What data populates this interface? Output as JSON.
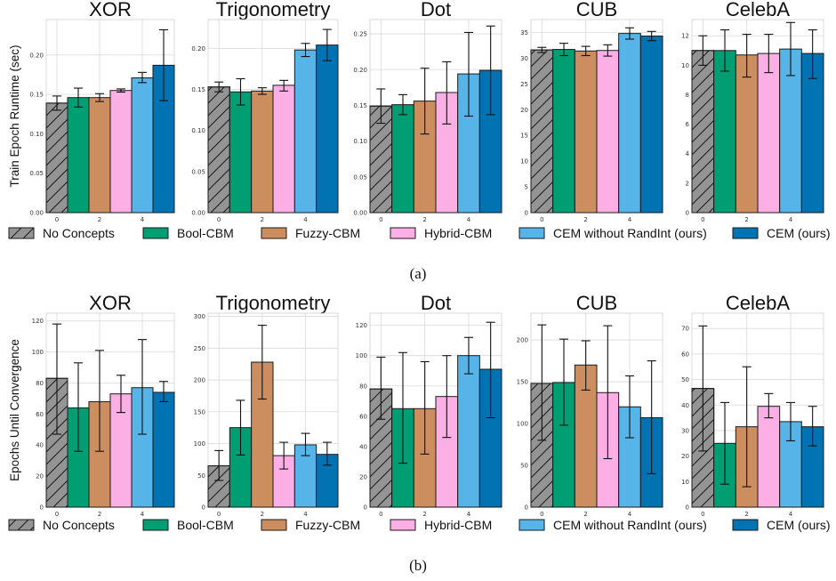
{
  "legend": [
    {
      "label": "No Concepts",
      "color": "#949494",
      "hatch": true
    },
    {
      "label": "Bool-CBM",
      "color": "#029e73",
      "hatch": false
    },
    {
      "label": "Fuzzy-CBM",
      "color": "#cc8d5f",
      "hatch": false
    },
    {
      "label": "Hybrid-CBM",
      "color": "#fbafe4",
      "hatch": false
    },
    {
      "label": "CEM without RandInt (ours)",
      "color": "#56b4e9",
      "hatch": false
    },
    {
      "label": "CEM (ours)",
      "color": "#0173b2",
      "hatch": false
    }
  ],
  "captions": [
    "(a)",
    "(b)"
  ],
  "chart_data": [
    {
      "type": "bar",
      "row": 0,
      "ylabel": "Train Epoch Runtime (sec)",
      "panels": [
        {
          "title": "XOR",
          "ylim": [
            0,
            0.245
          ],
          "yticks": [
            "0.00",
            "0.05",
            "0.10",
            "0.15",
            "0.20"
          ],
          "ytick_vals": [
            0,
            0.05,
            0.1,
            0.15,
            0.2
          ],
          "xticks": [
            "0",
            "2",
            "4"
          ],
          "values": [
            0.139,
            0.146,
            0.146,
            0.155,
            0.171,
            0.187
          ],
          "errors": [
            [
              0.13,
              0.148
            ],
            [
              0.134,
              0.158
            ],
            [
              0.141,
              0.151
            ],
            [
              0.153,
              0.157
            ],
            [
              0.165,
              0.178
            ],
            [
              0.142,
              0.232
            ]
          ]
        },
        {
          "title": "Trigonometry",
          "ylim": [
            0,
            0.235
          ],
          "yticks": [
            "0.00",
            "0.05",
            "0.10",
            "0.15",
            "0.20"
          ],
          "ytick_vals": [
            0,
            0.05,
            0.1,
            0.15,
            0.2
          ],
          "xticks": [
            "0",
            "2",
            "4"
          ],
          "values": [
            0.153,
            0.147,
            0.148,
            0.155,
            0.198,
            0.204
          ],
          "errors": [
            [
              0.147,
              0.159
            ],
            [
              0.131,
              0.163
            ],
            [
              0.144,
              0.152
            ],
            [
              0.148,
              0.161
            ],
            [
              0.19,
              0.206
            ],
            [
              0.185,
              0.223
            ]
          ]
        },
        {
          "title": "Dot",
          "ylim": [
            0,
            0.27
          ],
          "yticks": [
            "0.00",
            "0.05",
            "0.10",
            "0.15",
            "0.20",
            "0.25"
          ],
          "ytick_vals": [
            0,
            0.05,
            0.1,
            0.15,
            0.2,
            0.25
          ],
          "xticks": [
            "0",
            "2",
            "4"
          ],
          "values": [
            0.149,
            0.151,
            0.156,
            0.168,
            0.194,
            0.199
          ],
          "errors": [
            [
              0.125,
              0.173
            ],
            [
              0.137,
              0.165
            ],
            [
              0.11,
              0.202
            ],
            [
              0.124,
              0.211
            ],
            [
              0.135,
              0.252
            ],
            [
              0.137,
              0.261
            ]
          ]
        },
        {
          "title": "CUB",
          "ylim": [
            0,
            37.5
          ],
          "yticks": [
            "0",
            "5",
            "10",
            "15",
            "20",
            "25",
            "30",
            "35"
          ],
          "ytick_vals": [
            0,
            5,
            10,
            15,
            20,
            25,
            30,
            35
          ],
          "xticks": [
            "0",
            "2",
            "4"
          ],
          "values": [
            31.6,
            31.7,
            31.4,
            31.5,
            34.8,
            34.3
          ],
          "errors": [
            [
              31.1,
              32.1
            ],
            [
              30.5,
              32.9
            ],
            [
              30.5,
              32.3
            ],
            [
              30.4,
              32.6
            ],
            [
              33.7,
              35.9
            ],
            [
              33.4,
              35.2
            ]
          ]
        },
        {
          "title": "CelebA",
          "ylim": [
            0,
            13.1
          ],
          "yticks": [
            "0",
            "2",
            "4",
            "6",
            "8",
            "10",
            "12"
          ],
          "ytick_vals": [
            0,
            2,
            4,
            6,
            8,
            10,
            12
          ],
          "xticks": [
            "0",
            "2",
            "4"
          ],
          "values": [
            11.0,
            11.0,
            10.7,
            10.8,
            11.1,
            10.8
          ],
          "errors": [
            [
              10.0,
              12.0
            ],
            [
              9.6,
              12.4
            ],
            [
              9.2,
              12.1
            ],
            [
              9.5,
              12.1
            ],
            [
              9.3,
              12.9
            ],
            [
              9.1,
              12.4
            ]
          ]
        }
      ]
    },
    {
      "type": "bar",
      "row": 1,
      "ylabel": "Epochs Until Convergence",
      "panels": [
        {
          "title": "XOR",
          "ylim": [
            0,
            125
          ],
          "yticks": [
            "0",
            "20",
            "40",
            "60",
            "80",
            "100",
            "120"
          ],
          "ytick_vals": [
            0,
            20,
            40,
            60,
            80,
            100,
            120
          ],
          "xticks": [
            "0",
            "2",
            "4"
          ],
          "values": [
            83,
            64,
            68,
            73,
            77,
            74
          ],
          "errors": [
            [
              47,
              118
            ],
            [
              36,
              93
            ],
            [
              36,
              101
            ],
            [
              61,
              85
            ],
            [
              47,
              108
            ],
            [
              68,
              81
            ]
          ]
        },
        {
          "title": "Trigonometry",
          "ylim": [
            0,
            305
          ],
          "yticks": [
            "0",
            "50",
            "100",
            "150",
            "200",
            "250",
            "300"
          ],
          "ytick_vals": [
            0,
            50,
            100,
            150,
            200,
            250,
            300
          ],
          "xticks": [
            "0",
            "2",
            "4"
          ],
          "values": [
            65,
            125,
            228,
            81,
            98,
            83
          ],
          "errors": [
            [
              42,
              89
            ],
            [
              82,
              168
            ],
            [
              170,
              286
            ],
            [
              60,
              102
            ],
            [
              81,
              116
            ],
            [
              66,
              102
            ]
          ]
        },
        {
          "title": "Dot",
          "ylim": [
            0,
            128
          ],
          "yticks": [
            "0",
            "20",
            "40",
            "60",
            "80",
            "100",
            "120"
          ],
          "ytick_vals": [
            0,
            20,
            40,
            60,
            80,
            100,
            120
          ],
          "xticks": [
            "0",
            "2",
            "4"
          ],
          "values": [
            78,
            65,
            65,
            73,
            100,
            91
          ],
          "errors": [
            [
              58,
              99
            ],
            [
              29,
              102
            ],
            [
              35,
              96
            ],
            [
              46,
              100
            ],
            [
              88,
              112
            ],
            [
              59,
              122
            ]
          ]
        },
        {
          "title": "CUB",
          "ylim": [
            0,
            232
          ],
          "yticks": [
            "0",
            "50",
            "100",
            "150",
            "200"
          ],
          "ytick_vals": [
            0,
            50,
            100,
            150,
            200
          ],
          "xticks": [
            "0",
            "2",
            "4"
          ],
          "values": [
            148,
            149,
            170,
            137,
            120,
            107
          ],
          "errors": [
            [
              80,
              218
            ],
            [
              98,
              201
            ],
            [
              140,
              199
            ],
            [
              58,
              217
            ],
            [
              83,
              157
            ],
            [
              40,
              175
            ]
          ]
        },
        {
          "title": "CelebA",
          "ylim": [
            0,
            76
          ],
          "yticks": [
            "0",
            "10",
            "20",
            "30",
            "40",
            "50",
            "60",
            "70"
          ],
          "ytick_vals": [
            0,
            10,
            20,
            30,
            40,
            50,
            60,
            70
          ],
          "xticks": [
            "0",
            "2",
            "4"
          ],
          "values": [
            46.5,
            25,
            31.5,
            39.5,
            33.5,
            31.5
          ],
          "errors": [
            [
              22,
              71
            ],
            [
              9,
              41
            ],
            [
              8,
              55
            ],
            [
              35,
              44.5
            ],
            [
              26,
              41
            ],
            [
              24,
              39.5
            ]
          ]
        }
      ]
    }
  ]
}
